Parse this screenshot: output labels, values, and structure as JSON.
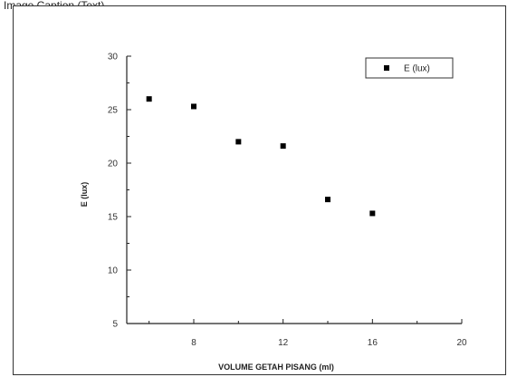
{
  "caption": "Image Caption (Text)",
  "chart_data": {
    "type": "scatter",
    "title": "",
    "xlabel": "VOLUME GETAH PISANG (ml)",
    "ylabel": "E (lux)",
    "xlim": [
      5,
      20
    ],
    "ylim": [
      5,
      30
    ],
    "xticks": [
      8,
      12,
      16,
      20
    ],
    "yticks": [
      5,
      10,
      15,
      20,
      25,
      30
    ],
    "legend_position": "top-right",
    "series": [
      {
        "name": "E (lux)",
        "marker": "square",
        "color": "#000000",
        "x": [
          6,
          8,
          10,
          12,
          14,
          16
        ],
        "y": [
          26.0,
          25.3,
          22.0,
          21.6,
          16.6,
          15.3
        ]
      }
    ],
    "grid": false
  }
}
